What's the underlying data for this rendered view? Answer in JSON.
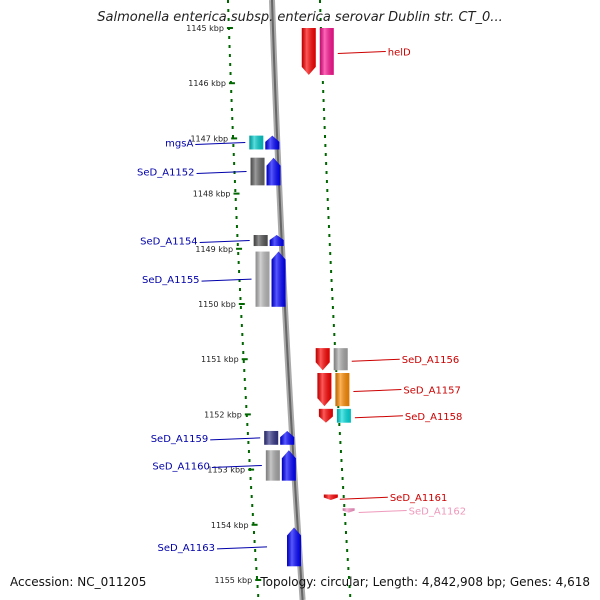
{
  "title": "Salmonella enterica subsp. enterica serovar Dublin str. CT_0...",
  "accession": "Accession: NC_011205",
  "topology_summary": "Topology: circular; Length: 4,842,908 bp; Genes: 4,618",
  "colors": {
    "forward_label": "#0000aa",
    "reverse_label": "#cc0000",
    "rna_label": "#ee99bb",
    "backbone": "#888888",
    "tick": "#006600"
  },
  "ticks": [
    {
      "label": "1145 kbp",
      "kbp": 1145
    },
    {
      "label": "1146 kbp",
      "kbp": 1146
    },
    {
      "label": "1147 kbp",
      "kbp": 1147
    },
    {
      "label": "1148 kbp",
      "kbp": 1148
    },
    {
      "label": "1149 kbp",
      "kbp": 1149
    },
    {
      "label": "1150 kbp",
      "kbp": 1150
    },
    {
      "label": "1151 kbp",
      "kbp": 1151
    },
    {
      "label": "1152 kbp",
      "kbp": 1152
    },
    {
      "label": "1153 kbp",
      "kbp": 1153
    },
    {
      "label": "1154 kbp",
      "kbp": 1154
    },
    {
      "label": "1155 kbp",
      "kbp": 1155
    }
  ],
  "features": [
    {
      "name": "helD",
      "strand": "reverse",
      "start_kbp": 1145.0,
      "end_kbp": 1145.85,
      "color": "#ff0000",
      "cog_color": "#ff1493",
      "labeled": true
    },
    {
      "name": "mgsA",
      "strand": "forward",
      "start_kbp": 1146.95,
      "end_kbp": 1147.2,
      "color": "#0000ff",
      "cog_color": "#00cccc",
      "labeled": true
    },
    {
      "name": "SeD_A1152",
      "strand": "forward",
      "start_kbp": 1147.35,
      "end_kbp": 1147.85,
      "color": "#0000ff",
      "cog_color": "#666666",
      "labeled": true
    },
    {
      "name": "SeD_A1154",
      "strand": "forward",
      "start_kbp": 1148.75,
      "end_kbp": 1148.95,
      "color": "#0000ff",
      "cog_color": "#555555",
      "labeled": true
    },
    {
      "name": "SeD_A1155",
      "strand": "forward",
      "start_kbp": 1149.05,
      "end_kbp": 1150.05,
      "color": "#0000ff",
      "cog_color": "#bbbbbb",
      "labeled": true
    },
    {
      "name": "SeD_A1156",
      "strand": "reverse",
      "start_kbp": 1150.8,
      "end_kbp": 1151.2,
      "color": "#ff0000",
      "cog_color": "#aaaaaa",
      "labeled": true
    },
    {
      "name": "SeD_A1157",
      "strand": "reverse",
      "start_kbp": 1151.25,
      "end_kbp": 1151.85,
      "color": "#ff0000",
      "cog_color": "#ff8c00",
      "labeled": true
    },
    {
      "name": "SeD_A1158",
      "strand": "reverse",
      "start_kbp": 1151.9,
      "end_kbp": 1152.15,
      "color": "#ff0000",
      "cog_color": "#00dddd",
      "labeled": true
    },
    {
      "name": "SeD_A1159",
      "strand": "forward",
      "start_kbp": 1152.3,
      "end_kbp": 1152.55,
      "color": "#0000ff",
      "cog_color": "#333388",
      "labeled": true
    },
    {
      "name": "SeD_A1160",
      "strand": "forward",
      "start_kbp": 1152.65,
      "end_kbp": 1153.2,
      "color": "#0000ff",
      "cog_color": "#aaaaaa",
      "labeled": true
    },
    {
      "name": "SeD_A1161",
      "strand": "reverse",
      "start_kbp": 1153.45,
      "end_kbp": 1153.55,
      "color": "#ff0000",
      "cog_color": null,
      "labeled": true
    },
    {
      "name": "SeD_A1162",
      "strand": "rna",
      "start_kbp": 1153.7,
      "end_kbp": 1153.78,
      "color": "#ff99cc",
      "cog_color": null,
      "labeled": true
    },
    {
      "name": "SeD_A1163",
      "strand": "forward",
      "start_kbp": 1154.05,
      "end_kbp": 1154.75,
      "color": "#0000ff",
      "cog_color": null,
      "labeled": true
    }
  ]
}
